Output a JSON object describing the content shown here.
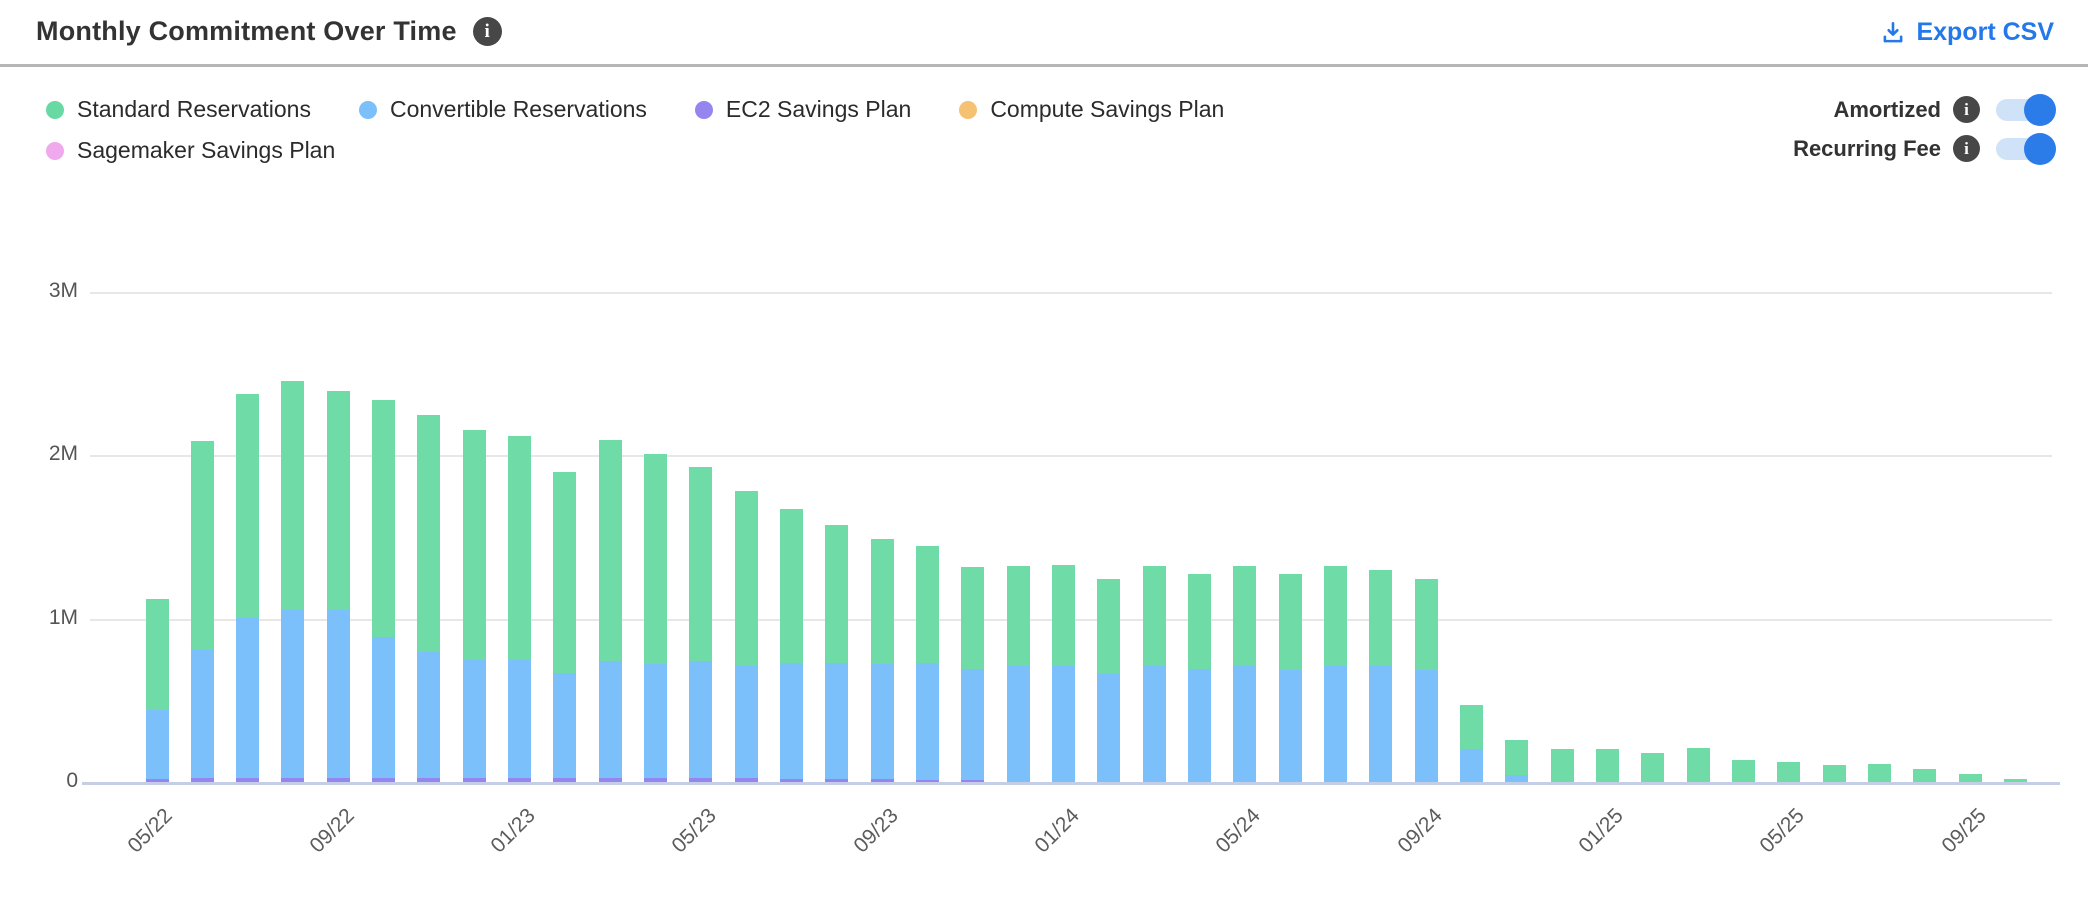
{
  "header": {
    "title": "Monthly Commitment Over Time",
    "info_icon": "i",
    "export_label": "Export CSV",
    "export_color": "#2478ea"
  },
  "legend": {
    "rows": [
      [
        {
          "label": "Standard Reservations",
          "color": "#69d9a3"
        },
        {
          "label": "Convertible Reservations",
          "color": "#7bbffb"
        },
        {
          "label": "EC2 Savings Plan",
          "color": "#9585ee"
        },
        {
          "label": "Compute Savings Plan",
          "color": "#f5c172"
        }
      ],
      [
        {
          "label": "Sagemaker Savings Plan",
          "color": "#efa9ec"
        }
      ]
    ]
  },
  "toggles": [
    {
      "label": "Amortized",
      "state": "on"
    },
    {
      "label": "Recurring Fee",
      "state": "on"
    }
  ],
  "toggle_colors": {
    "track": "#cfe2f8",
    "knob": "#2b7ce9"
  },
  "chart_data": {
    "type": "bar",
    "stacked": true,
    "title": "Monthly Commitment Over Time",
    "xlabel": "",
    "ylabel": "",
    "unit": "M",
    "ylim": [
      0,
      3
    ],
    "y_ticks": [
      "0",
      "1M",
      "2M",
      "3M"
    ],
    "grid": true,
    "legend_position": "top-left",
    "x_tick_label_rotation": -45,
    "x_tick_labels": [
      "05/22",
      "09/22",
      "01/23",
      "05/23",
      "09/23",
      "01/24",
      "05/24",
      "09/24",
      "01/25",
      "05/25",
      "09/25"
    ],
    "categories": [
      "05/22",
      "06/22",
      "07/22",
      "08/22",
      "09/22",
      "10/22",
      "11/22",
      "12/22",
      "01/23",
      "02/23",
      "03/23",
      "04/23",
      "05/23",
      "06/23",
      "07/23",
      "08/23",
      "09/23",
      "10/23",
      "11/23",
      "12/23",
      "01/24",
      "02/24",
      "03/24",
      "04/24",
      "05/24",
      "06/24",
      "07/24",
      "08/24",
      "09/24",
      "10/24",
      "11/24",
      "12/24",
      "01/25",
      "02/25",
      "03/25",
      "04/25",
      "05/25",
      "06/25",
      "07/25",
      "08/25",
      "09/25",
      "10/25"
    ],
    "series": [
      {
        "name": "EC2 Savings Plan",
        "color": "#9585ee",
        "stack_order": 0,
        "values": [
          0.02,
          0.025,
          0.025,
          0.025,
          0.025,
          0.025,
          0.025,
          0.025,
          0.025,
          0.025,
          0.025,
          0.025,
          0.025,
          0.025,
          0.02,
          0.02,
          0.02,
          0.015,
          0.015,
          0,
          0,
          0,
          0,
          0,
          0,
          0,
          0,
          0,
          0,
          0,
          0,
          0,
          0,
          0,
          0,
          0,
          0,
          0,
          0,
          0,
          0,
          0
        ]
      },
      {
        "name": "Convertible Reservations",
        "color": "#7bbffb",
        "stack_order": 1,
        "values": [
          0.42,
          0.78,
          0.98,
          1.03,
          1.03,
          0.86,
          0.77,
          0.72,
          0.72,
          0.645,
          0.715,
          0.695,
          0.715,
          0.685,
          0.71,
          0.71,
          0.7,
          0.715,
          0.675,
          0.71,
          0.71,
          0.66,
          0.71,
          0.69,
          0.71,
          0.685,
          0.71,
          0.71,
          0.685,
          0.2,
          0.04,
          0,
          0,
          0,
          0,
          0,
          0,
          0,
          0,
          0,
          0,
          0
        ]
      },
      {
        "name": "Standard Reservations",
        "color": "#6fdba7",
        "stack_order": 2,
        "values": [
          0.68,
          1.28,
          1.37,
          1.4,
          1.34,
          1.45,
          1.45,
          1.41,
          1.37,
          1.23,
          1.35,
          1.29,
          1.19,
          1.07,
          0.94,
          0.84,
          0.77,
          0.715,
          0.625,
          0.61,
          0.62,
          0.58,
          0.61,
          0.58,
          0.61,
          0.585,
          0.61,
          0.59,
          0.555,
          0.27,
          0.22,
          0.2,
          0.2,
          0.18,
          0.21,
          0.135,
          0.125,
          0.105,
          0.11,
          0.08,
          0.05,
          0.02
        ]
      },
      {
        "name": "Compute Savings Plan",
        "color": "#f5c172",
        "stack_order": 3,
        "values": [
          0,
          0,
          0,
          0,
          0,
          0,
          0,
          0,
          0,
          0,
          0,
          0,
          0,
          0,
          0,
          0,
          0,
          0,
          0,
          0,
          0,
          0,
          0,
          0,
          0,
          0,
          0,
          0,
          0,
          0,
          0,
          0,
          0,
          0,
          0,
          0,
          0,
          0,
          0,
          0,
          0,
          0
        ]
      },
      {
        "name": "Sagemaker Savings Plan",
        "color": "#efa9ec",
        "stack_order": 4,
        "values": [
          0,
          0,
          0,
          0,
          0,
          0,
          0,
          0,
          0,
          0,
          0,
          0,
          0,
          0,
          0,
          0,
          0,
          0,
          0,
          0,
          0,
          0,
          0,
          0,
          0,
          0,
          0,
          0,
          0,
          0,
          0,
          0,
          0,
          0,
          0,
          0,
          0,
          0,
          0,
          0,
          0,
          0
        ]
      }
    ]
  }
}
